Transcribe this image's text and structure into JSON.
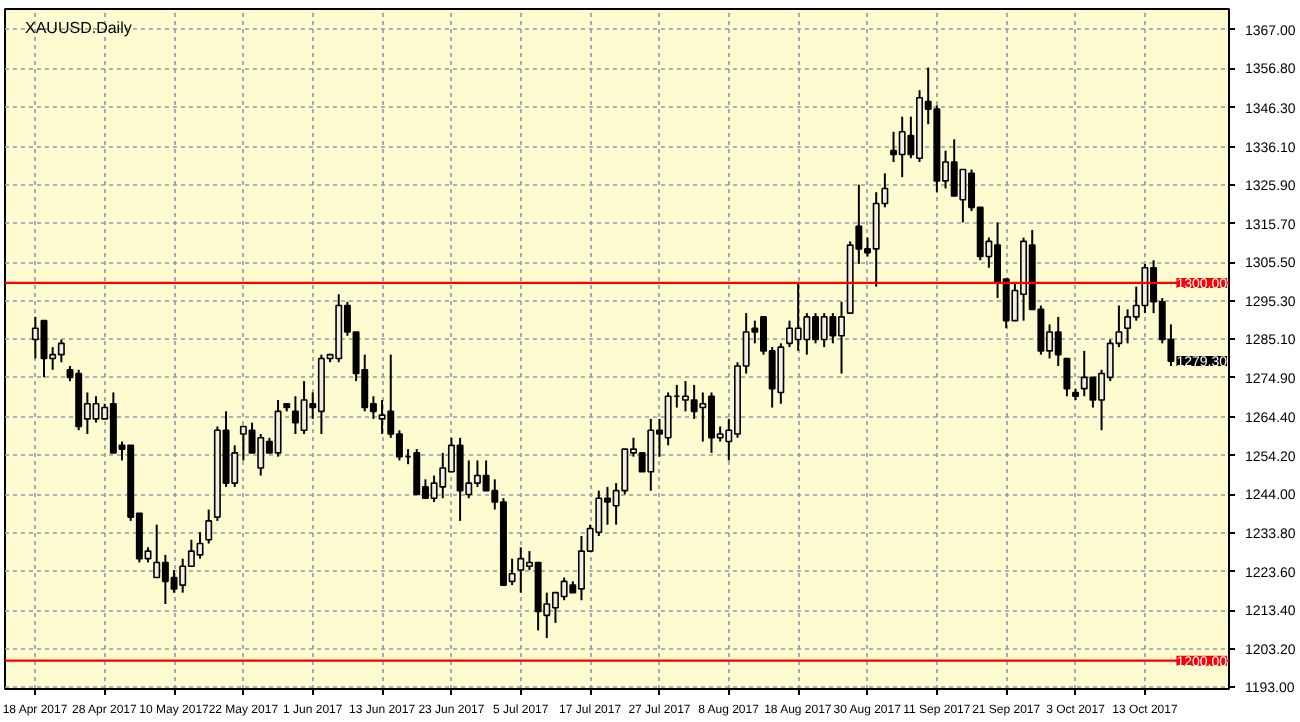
{
  "chart_data": {
    "type": "candlestick",
    "title": "XAUUSD.Daily",
    "categories": [
      "18 Apr 2017",
      null,
      null,
      null,
      null,
      null,
      null,
      null,
      "28 Apr 2017",
      null,
      null,
      null,
      null,
      null,
      null,
      null,
      "10 May 2017",
      null,
      null,
      null,
      null,
      null,
      null,
      null,
      "22 May 2017",
      null,
      null,
      null,
      null,
      null,
      null,
      null,
      "1 Jun 2017",
      null,
      null,
      null,
      null,
      null,
      null,
      null,
      "13 Jun 2017",
      null,
      null,
      null,
      null,
      null,
      null,
      null,
      "23 Jun 2017",
      null,
      null,
      null,
      null,
      null,
      null,
      null,
      "5 Jul 2017",
      null,
      null,
      null,
      null,
      null,
      null,
      null,
      "17 Jul 2017",
      null,
      null,
      null,
      null,
      null,
      null,
      null,
      "27 Jul 2017",
      null,
      null,
      null,
      null,
      null,
      null,
      null,
      "8 Aug 2017",
      null,
      null,
      null,
      null,
      null,
      null,
      null,
      "18 Aug 2017",
      null,
      null,
      null,
      null,
      null,
      null,
      null,
      "30 Aug 2017",
      null,
      null,
      null,
      null,
      null,
      null,
      null,
      "11 Sep 2017",
      null,
      null,
      null,
      null,
      null,
      null,
      null,
      "21 Sep 2017",
      null,
      null,
      null,
      null,
      null,
      null,
      null,
      "3 Oct 2017",
      null,
      null,
      null,
      null,
      null,
      null,
      null,
      "13 Oct 2017",
      null,
      null,
      null
    ],
    "ohlc": [
      [
        1285,
        1291,
        1280,
        1288
      ],
      [
        1290,
        1290,
        1275,
        1280
      ],
      [
        1280,
        1283,
        1277,
        1281
      ],
      [
        1281,
        1285,
        1279,
        1284
      ],
      [
        1277,
        1278,
        1274,
        1275
      ],
      [
        1276,
        1277,
        1261,
        1262
      ],
      [
        1264,
        1271,
        1260,
        1268
      ],
      [
        1264,
        1270,
        1263,
        1268
      ],
      [
        1264,
        1268,
        1264,
        1267
      ],
      [
        1268,
        1271,
        1255,
        1255
      ],
      [
        1257,
        1258,
        1253,
        1256
      ],
      [
        1257,
        1257,
        1237,
        1238
      ],
      [
        1239,
        1239,
        1226,
        1227
      ],
      [
        1227,
        1230,
        1226,
        1229
      ],
      [
        1222,
        1236,
        1222,
        1226
      ],
      [
        1226,
        1228,
        1215,
        1221
      ],
      [
        1222,
        1224,
        1218,
        1219
      ],
      [
        1220,
        1227,
        1218,
        1225
      ],
      [
        1225,
        1232,
        1225,
        1229
      ],
      [
        1228,
        1234,
        1227,
        1231
      ],
      [
        1232,
        1240,
        1231,
        1237
      ],
      [
        1238,
        1262,
        1237,
        1261
      ],
      [
        1261,
        1266,
        1246,
        1247
      ],
      [
        1247,
        1257,
        1246,
        1255
      ],
      [
        1260,
        1262,
        1253,
        1262
      ],
      [
        1261,
        1263,
        1255,
        1255
      ],
      [
        1251,
        1260,
        1249,
        1259
      ],
      [
        1258,
        1259,
        1255,
        1255
      ],
      [
        1255,
        1269,
        1254,
        1266
      ],
      [
        1268,
        1268,
        1266,
        1267
      ],
      [
        1266,
        1270,
        1260,
        1263
      ],
      [
        1261,
        1274,
        1260,
        1269
      ],
      [
        1268,
        1271,
        1264,
        1267
      ],
      [
        1266,
        1281,
        1260,
        1280
      ],
      [
        1280,
        1281,
        1279,
        1281
      ],
      [
        1280,
        1297,
        1279,
        1294
      ],
      [
        1294,
        1295,
        1286,
        1287
      ],
      [
        1287,
        1287,
        1274,
        1276
      ],
      [
        1277,
        1281,
        1266,
        1267
      ],
      [
        1268,
        1270,
        1264,
        1266
      ],
      [
        1264,
        1269,
        1260,
        1265
      ],
      [
        1266,
        1281,
        1259,
        1260
      ],
      [
        1260,
        1261,
        1253,
        1254
      ],
      [
        1254,
        1256,
        1252,
        1254
      ],
      [
        1255,
        1256,
        1244,
        1244
      ],
      [
        1246,
        1248,
        1243,
        1243
      ],
      [
        1243,
        1249,
        1242,
        1247
      ],
      [
        1246,
        1255,
        1243,
        1251
      ],
      [
        1250,
        1259,
        1250,
        1257
      ],
      [
        1257,
        1259,
        1237,
        1245
      ],
      [
        1244,
        1253,
        1243,
        1247
      ],
      [
        1247,
        1253,
        1246,
        1249
      ],
      [
        1249,
        1253,
        1245,
        1245
      ],
      [
        1245,
        1248,
        1240,
        1242
      ],
      [
        1242,
        1243,
        1220,
        1220
      ],
      [
        1221,
        1227,
        1220,
        1223
      ],
      [
        1224,
        1230,
        1218,
        1227
      ],
      [
        1225,
        1229,
        1224,
        1226
      ],
      [
        1226,
        1226,
        1208,
        1213
      ],
      [
        1212,
        1218,
        1206,
        1215
      ],
      [
        1214,
        1218,
        1210,
        1218
      ],
      [
        1217,
        1222,
        1216,
        1221
      ],
      [
        1220,
        1221,
        1218,
        1218
      ],
      [
        1219,
        1233,
        1216,
        1229
      ],
      [
        1229,
        1236,
        1229,
        1235
      ],
      [
        1234,
        1245,
        1233,
        1243
      ],
      [
        1243,
        1246,
        1236,
        1242
      ],
      [
        1241,
        1247,
        1236,
        1245
      ],
      [
        1245,
        1256,
        1244,
        1256
      ],
      [
        1255,
        1259,
        1254,
        1256
      ],
      [
        1255,
        1255,
        1250,
        1250
      ],
      [
        1250,
        1264,
        1245,
        1261
      ],
      [
        1261,
        1264,
        1254,
        1260
      ],
      [
        1259,
        1271,
        1257,
        1270
      ],
      [
        1270,
        1273,
        1267,
        1270
      ],
      [
        1269,
        1274,
        1266,
        1270
      ],
      [
        1269,
        1273,
        1264,
        1266
      ],
      [
        1267,
        1271,
        1258,
        1268
      ],
      [
        1270,
        1271,
        1255,
        1259
      ],
      [
        1259,
        1262,
        1258,
        1260
      ],
      [
        1258,
        1264,
        1253,
        1261
      ],
      [
        1260,
        1279,
        1259,
        1278
      ],
      [
        1278,
        1292,
        1276,
        1287
      ],
      [
        1288,
        1290,
        1284,
        1287
      ],
      [
        1291,
        1291,
        1281,
        1282
      ],
      [
        1282,
        1283,
        1267,
        1272
      ],
      [
        1271,
        1284,
        1268,
        1283
      ],
      [
        1284,
        1290,
        1283,
        1288
      ],
      [
        1285,
        1300,
        1282,
        1288
      ],
      [
        1285,
        1292,
        1281,
        1291
      ],
      [
        1291,
        1292,
        1284,
        1285
      ],
      [
        1285,
        1292,
        1283,
        1291
      ],
      [
        1291,
        1292,
        1284,
        1286
      ],
      [
        1286,
        1295,
        1276,
        1291
      ],
      [
        1292,
        1311,
        1292,
        1310
      ],
      [
        1315,
        1326,
        1305,
        1309
      ],
      [
        1309,
        1312,
        1307,
        1308
      ],
      [
        1309,
        1324,
        1299,
        1321
      ],
      [
        1321,
        1329,
        1320,
        1325
      ],
      [
        1335,
        1340,
        1332,
        1334
      ],
      [
        1334,
        1344,
        1328,
        1340
      ],
      [
        1339,
        1344,
        1333,
        1334
      ],
      [
        1333,
        1351,
        1332,
        1349
      ],
      [
        1348,
        1357,
        1342,
        1346
      ],
      [
        1346,
        1347,
        1324,
        1327
      ],
      [
        1327,
        1335,
        1325,
        1332
      ],
      [
        1332,
        1338,
        1323,
        1323
      ],
      [
        1322,
        1330,
        1316,
        1330
      ],
      [
        1329,
        1330,
        1319,
        1320
      ],
      [
        1320,
        1320,
        1306,
        1307
      ],
      [
        1307,
        1312,
        1304,
        1311
      ],
      [
        1310,
        1316,
        1296,
        1300
      ],
      [
        1301,
        1301,
        1288,
        1290
      ],
      [
        1290,
        1300,
        1290,
        1298
      ],
      [
        1297,
        1312,
        1290,
        1311
      ],
      [
        1310,
        1314,
        1293,
        1293
      ],
      [
        1293,
        1294,
        1281,
        1282
      ],
      [
        1282,
        1289,
        1280,
        1287
      ],
      [
        1287,
        1291,
        1278,
        1281
      ],
      [
        1280,
        1280,
        1270,
        1272
      ],
      [
        1271,
        1272,
        1269,
        1270
      ],
      [
        1272,
        1282,
        1270,
        1275
      ],
      [
        1275,
        1275,
        1267,
        1269
      ],
      [
        1269,
        1277,
        1261,
        1276
      ],
      [
        1275,
        1285,
        1274,
        1284
      ],
      [
        1284,
        1294,
        1283,
        1287
      ],
      [
        1288,
        1293,
        1284,
        1291
      ],
      [
        1291,
        1299,
        1290,
        1294
      ],
      [
        1294,
        1305,
        1292,
        1304
      ],
      [
        1304,
        1306,
        1292,
        1295
      ],
      [
        1295,
        1296,
        1284,
        1285
      ],
      [
        1285,
        1289,
        1278,
        1279.3
      ]
    ],
    "ylim": [
      1192.5,
      1372.5
    ],
    "yticks": [
      {
        "value": 1367.0,
        "label": "1367.00"
      },
      {
        "value": 1356.8,
        "label": "1356.80"
      },
      {
        "value": 1346.3,
        "label": "1346.30"
      },
      {
        "value": 1336.1,
        "label": "1336.10"
      },
      {
        "value": 1325.9,
        "label": "1325.90"
      },
      {
        "value": 1315.7,
        "label": "1315.70"
      },
      {
        "value": 1305.5,
        "label": "1305.50"
      },
      {
        "value": 1295.3,
        "label": "1295.30"
      },
      {
        "value": 1285.1,
        "label": "1285.10"
      },
      {
        "value": 1274.9,
        "label": "1274.90"
      },
      {
        "value": 1264.4,
        "label": "1264.40"
      },
      {
        "value": 1254.2,
        "label": "1254.20"
      },
      {
        "value": 1244.0,
        "label": "1244.00"
      },
      {
        "value": 1233.8,
        "label": "1233.80"
      },
      {
        "value": 1223.6,
        "label": "1223.60"
      },
      {
        "value": 1213.4,
        "label": "1213.40"
      },
      {
        "value": 1203.2,
        "label": "1203.20"
      },
      {
        "value": 1193.0,
        "label": "1193.00"
      }
    ],
    "ref_lines": [
      {
        "axis": "y",
        "value": 1300,
        "label": "1300.00",
        "color": "#ff0000"
      },
      {
        "axis": "y",
        "value": 1200,
        "label": "1200.00",
        "color": "#ff0000"
      }
    ],
    "annotations": [
      "1279.30"
    ],
    "grid": true
  }
}
